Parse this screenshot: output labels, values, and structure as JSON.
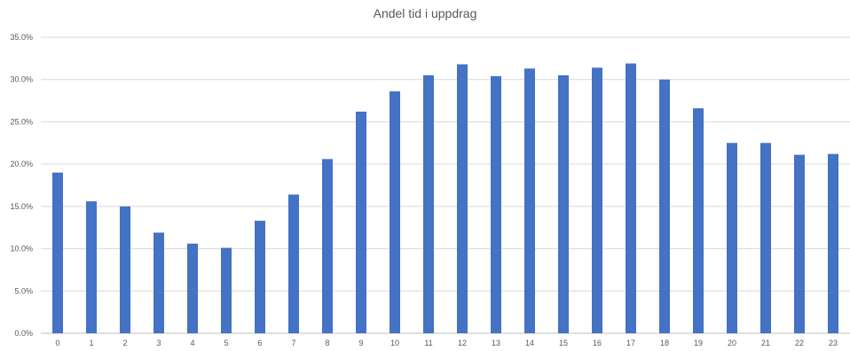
{
  "chart_data": {
    "type": "bar",
    "title": "Andel tid  i uppdrag",
    "xlabel": "",
    "ylabel": "",
    "categories": [
      "0",
      "1",
      "2",
      "3",
      "4",
      "5",
      "6",
      "7",
      "8",
      "9",
      "10",
      "11",
      "12",
      "13",
      "14",
      "15",
      "16",
      "17",
      "18",
      "19",
      "20",
      "21",
      "22",
      "23"
    ],
    "values": [
      19.0,
      15.6,
      15.0,
      11.9,
      10.6,
      10.1,
      13.3,
      16.4,
      20.6,
      26.2,
      28.6,
      30.5,
      31.8,
      30.4,
      31.3,
      30.5,
      31.4,
      31.9,
      30.0,
      26.6,
      22.5,
      22.5,
      21.1,
      21.2
    ],
    "ylim": [
      0,
      35
    ],
    "y_ticks": [
      0,
      5,
      10,
      15,
      20,
      25,
      30,
      35
    ],
    "y_tick_labels": [
      "0.0%",
      "5.0%",
      "10.0%",
      "15.0%",
      "20.0%",
      "25.0%",
      "30.0%",
      "35.0%"
    ],
    "bar_color": "#4472c4",
    "grid": true,
    "legend": "none"
  }
}
